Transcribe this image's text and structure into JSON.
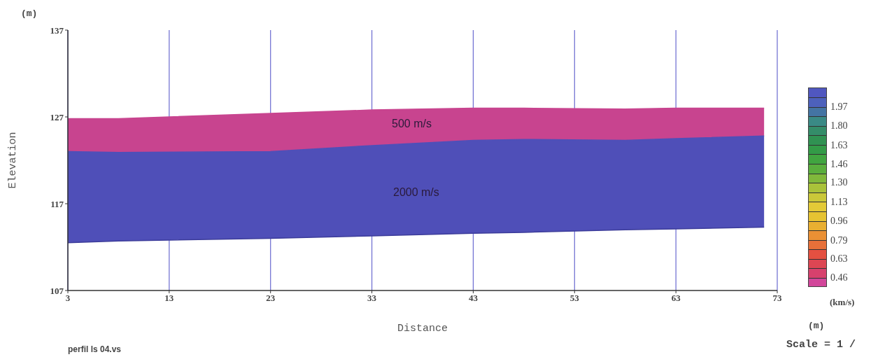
{
  "chart_data": {
    "type": "area",
    "xlabel": "Distance",
    "ylabel": "Elevation",
    "clabel": "(km/s)",
    "x": [
      3,
      8,
      23,
      33,
      43,
      48,
      58,
      63,
      71.7
    ],
    "series": [
      {
        "color": "#c8448f",
        "values": [
          126.8,
          126.8,
          127.4,
          127.8,
          128.0,
          128.0,
          127.9,
          128.0,
          128.0
        ]
      },
      {
        "color": "#4f4fb8",
        "values": [
          123.0,
          122.9,
          123.0,
          123.7,
          124.3,
          124.4,
          124.3,
          124.5,
          124.8
        ]
      },
      {
        "type": "line",
        "color": "#3c3c9a",
        "values": [
          112.5,
          112.7,
          113.0,
          113.3,
          113.6,
          113.7,
          114.0,
          114.1,
          114.3
        ]
      }
    ],
    "xlim": [
      3,
      73
    ],
    "xticks": [
      3,
      13,
      23,
      33,
      43,
      53,
      63,
      73
    ],
    "ylim": [
      107,
      137
    ],
    "yticks": [
      107,
      117,
      127,
      137
    ],
    "clim": [
      0.38,
      2.14
    ],
    "cticks": [
      1.97,
      {
        "value": 1.8,
        "label": "1.80"
      },
      1.63,
      1.46,
      {
        "value": 1.3,
        "label": "1.30"
      },
      1.13,
      0.96,
      0.79,
      0.63,
      0.46
    ],
    "grid": "x",
    "annotations": [
      "(m)",
      "(m)",
      "Scale = 1 /",
      "perfil ls 04.vs",
      "500 m/s",
      "2000 m/s"
    ]
  }
}
